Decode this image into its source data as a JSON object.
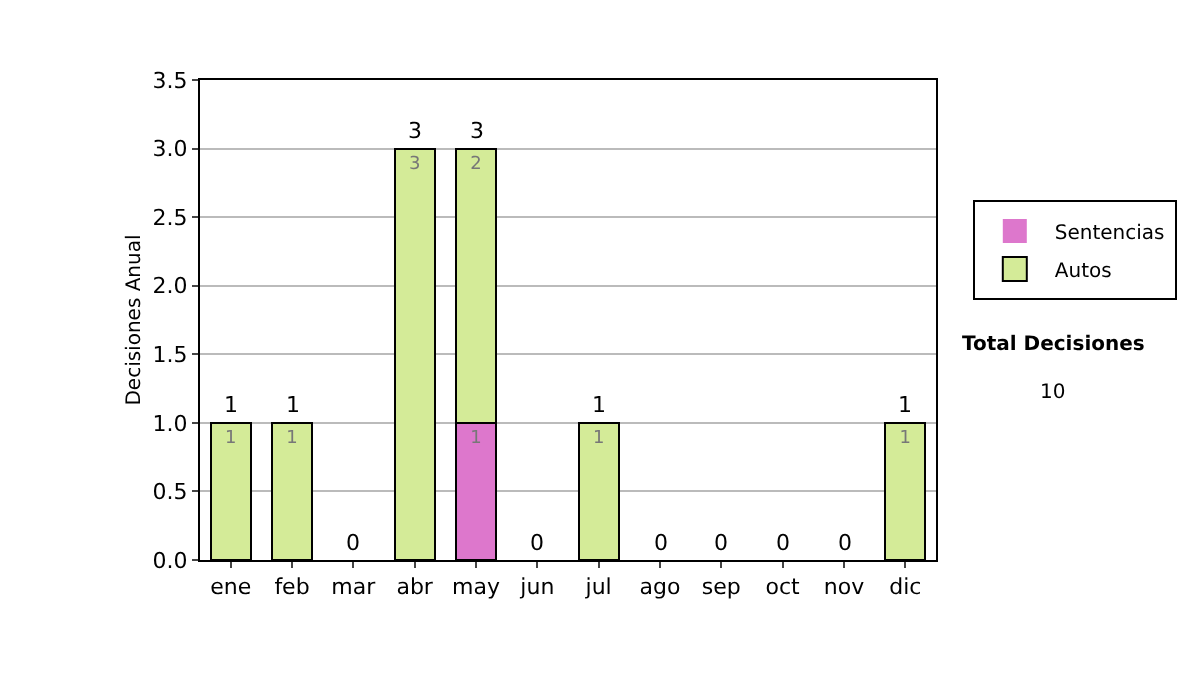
{
  "chart_data": {
    "type": "bar",
    "stacked": true,
    "ylabel": "Decisiones Anual",
    "categories": [
      "ene",
      "feb",
      "mar",
      "abr",
      "may",
      "jun",
      "jul",
      "ago",
      "sep",
      "oct",
      "nov",
      "dic"
    ],
    "series": [
      {
        "name": "Sentencias",
        "color": "#dd77cc",
        "values": [
          0,
          0,
          0,
          0,
          1,
          0,
          0,
          0,
          0,
          0,
          0,
          0
        ],
        "value_labels": [
          null,
          null,
          null,
          null,
          "1",
          null,
          null,
          null,
          null,
          null,
          null,
          null
        ]
      },
      {
        "name": "Autos",
        "color": "#d4eb98",
        "values": [
          1,
          1,
          0,
          3,
          2,
          0,
          1,
          0,
          0,
          0,
          0,
          1
        ],
        "value_labels": [
          "1",
          "1",
          null,
          "3",
          "2",
          null,
          "1",
          null,
          null,
          null,
          null,
          "1"
        ]
      }
    ],
    "totals": [
      "1",
      "1",
      "0",
      "3",
      "3",
      "0",
      "1",
      "0",
      "0",
      "0",
      "0",
      "1"
    ],
    "ylim": [
      0,
      3.5
    ],
    "yticks": [
      {
        "value": 0,
        "label": "0.0"
      },
      {
        "value": 0.5,
        "label": "0.5"
      },
      {
        "value": 1,
        "label": "1.0"
      },
      {
        "value": 1.5,
        "label": "1.5"
      },
      {
        "value": 2,
        "label": "2.0"
      },
      {
        "value": 2.5,
        "label": "2.5"
      },
      {
        "value": 3,
        "label": "3.0"
      },
      {
        "value": 3.5,
        "label": "3.5"
      }
    ],
    "grid": "y",
    "legend": "right",
    "annotations": [
      "Total Decisiones",
      "10"
    ]
  }
}
